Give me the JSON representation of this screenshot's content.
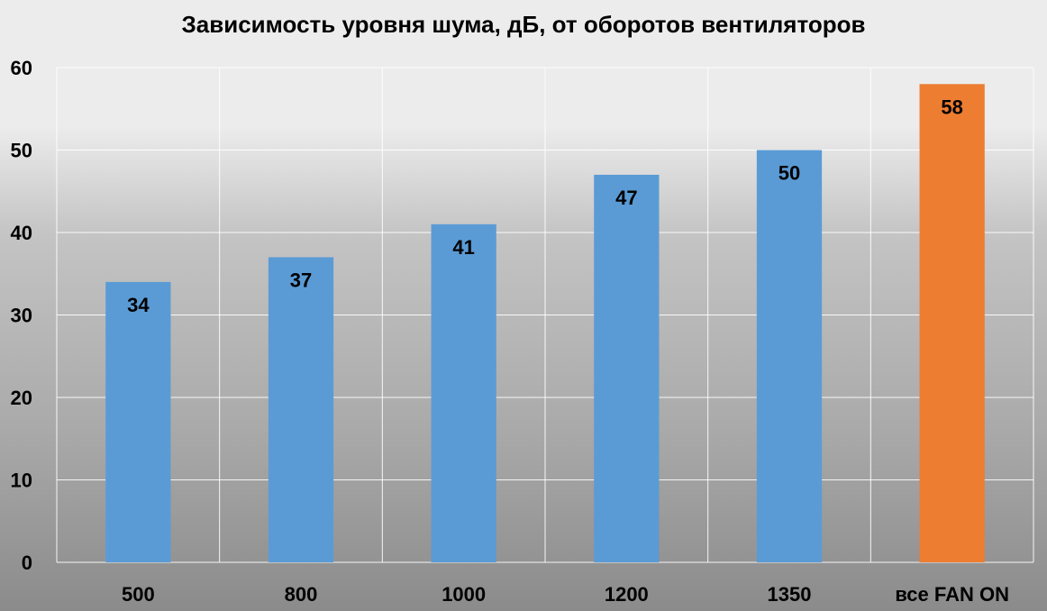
{
  "chart_data": {
    "type": "bar",
    "title": "Зависимость уровня шума, дБ, от оборотов вентиляторов",
    "categories": [
      "500",
      "800",
      "1000",
      "1200",
      "1350",
      "все FAN ON"
    ],
    "values": [
      34,
      37,
      41,
      47,
      50,
      58
    ],
    "data_labels": [
      "34",
      "37",
      "41",
      "47",
      "50",
      "58"
    ],
    "bar_colors": [
      "#5b9bd5",
      "#5b9bd5",
      "#5b9bd5",
      "#5b9bd5",
      "#5b9bd5",
      "#ed7d31"
    ],
    "ylim": [
      0,
      60
    ],
    "yticks": [
      0,
      10,
      20,
      30,
      40,
      50,
      60
    ],
    "ytick_labels": [
      "0",
      "10",
      "20",
      "30",
      "40",
      "50",
      "60"
    ],
    "grid": true,
    "legend": false,
    "xlabel": "",
    "ylabel": ""
  }
}
